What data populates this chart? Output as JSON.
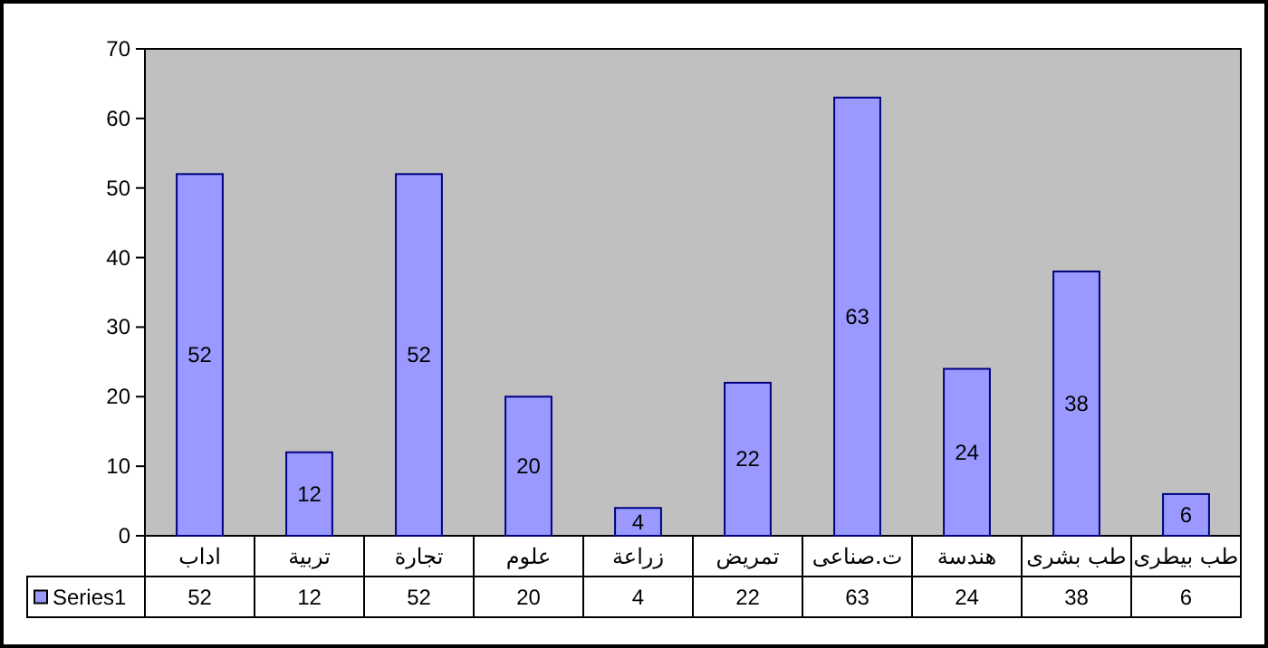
{
  "chart_data": {
    "type": "bar",
    "categories": [
      "اداب",
      "تربية",
      "تجارة",
      "علوم",
      "زراعة",
      "تمريض",
      "ت.صناعى",
      "هندسة",
      "طب بشرى",
      "طب بيطرى"
    ],
    "series": [
      {
        "name": "Series1",
        "color": "#9999ff",
        "values": [
          52,
          12,
          52,
          20,
          4,
          22,
          63,
          24,
          38,
          6
        ],
        "value_labels": [
          "52",
          "12",
          "52",
          "20",
          "4",
          "22",
          "63",
          "24",
          "38",
          "6"
        ]
      }
    ],
    "ylim": [
      0,
      70
    ],
    "yticks": [
      0,
      10,
      20,
      30,
      40,
      50,
      60,
      70
    ],
    "annotations": [
      "52",
      "12",
      "52",
      "20",
      "4",
      "22",
      "63",
      "24",
      "38",
      "6"
    ],
    "legend": "bottom left",
    "grid": false
  }
}
